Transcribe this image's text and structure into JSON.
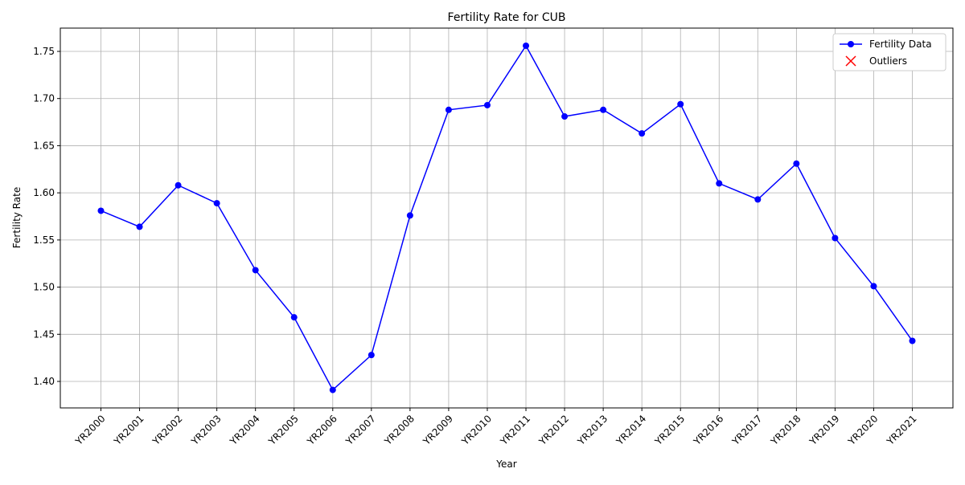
{
  "chart_data": {
    "type": "line",
    "title": "Fertility Rate for CUB",
    "xlabel": "Year",
    "ylabel": "Fertility Rate",
    "categories": [
      "YR2000",
      "YR2001",
      "YR2002",
      "YR2003",
      "YR2004",
      "YR2005",
      "YR2006",
      "YR2007",
      "YR2008",
      "YR2009",
      "YR2010",
      "YR2011",
      "YR2012",
      "YR2013",
      "YR2014",
      "YR2015",
      "YR2016",
      "YR2017",
      "YR2018",
      "YR2019",
      "YR2020",
      "YR2021"
    ],
    "series": [
      {
        "name": "Fertility Data",
        "color": "#0000ff",
        "marker": "o",
        "values": [
          1.581,
          1.564,
          1.608,
          1.589,
          1.518,
          1.468,
          1.391,
          1.428,
          1.576,
          1.688,
          1.693,
          1.756,
          1.681,
          1.688,
          1.663,
          1.694,
          1.61,
          1.593,
          1.631,
          1.552,
          1.501,
          1.443
        ]
      },
      {
        "name": "Outliers",
        "color": "#ff0000",
        "marker": "x",
        "values": [
          null,
          null,
          null,
          null,
          null,
          null,
          null,
          null,
          null,
          null,
          null,
          null,
          null,
          null,
          null,
          null,
          null,
          null,
          null,
          null,
          null,
          null
        ]
      }
    ],
    "ylim": [
      1.3719,
      1.7747
    ],
    "yticks": [
      {
        "value": 1.4,
        "label": "1.40"
      },
      {
        "value": 1.45,
        "label": "1.45"
      },
      {
        "value": 1.5,
        "label": "1.50"
      },
      {
        "value": 1.55,
        "label": "1.55"
      },
      {
        "value": 1.6,
        "label": "1.60"
      },
      {
        "value": 1.65,
        "label": "1.65"
      },
      {
        "value": 1.7,
        "label": "1.70"
      },
      {
        "value": 1.75,
        "label": "1.75"
      }
    ],
    "grid": true,
    "legend": "upper right"
  }
}
